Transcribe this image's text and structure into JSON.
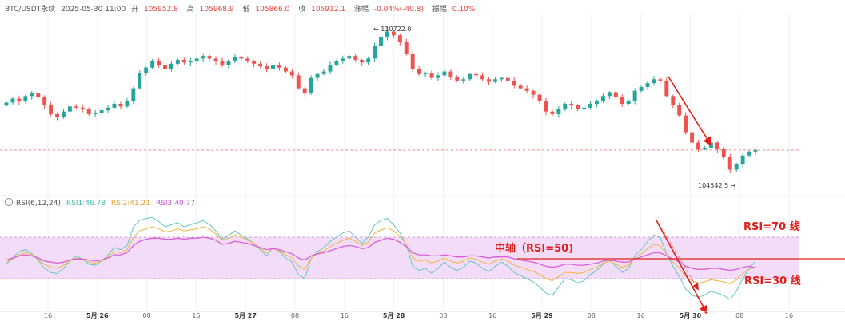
{
  "header": {
    "symbol": "BTC/USDT永续",
    "datetime": "2025-05-30 11:00",
    "open_label": "开",
    "open": "105952.8",
    "high_label": "高",
    "high": "105968.9",
    "low_label": "低",
    "low": "105866.0",
    "close_label": "收",
    "close": "105912.1",
    "change_label": "涨幅",
    "change": "-0.04%(-40.8)",
    "amp_label": "振幅",
    "amp": "0.10%"
  },
  "rsi_header": {
    "title": "RSI(6,12,24)",
    "rsi1": "RSI1:46.78",
    "rsi2": "RSI2:41.21",
    "rsi3": "RSI3:40.77"
  },
  "price_labels": {
    "high": "110722.0",
    "low": "104542.5"
  },
  "annotations": {
    "rsi70": "RSI=70 线",
    "mid": "中轴（RSI=50)",
    "rsi30": "RSI=30 线"
  },
  "colors": {
    "up": "#26a69a",
    "down": "#ef5350",
    "rsi1": "#5ec9c0",
    "rsi2": "#f5b342",
    "rsi3": "#d860d8",
    "band": "#f3dcf7",
    "anno": "#e0201a"
  },
  "chart_data": {
    "type": "candlestick",
    "interval": "1h",
    "x_ticks": [
      "16",
      "5月 26",
      "08",
      "16",
      "5月 27",
      "08",
      "16",
      "5月 28",
      "08",
      "16",
      "5月 29",
      "08",
      "16",
      "5月 30",
      "08",
      "16"
    ],
    "price_range": [
      104300,
      111100
    ],
    "last_price": 105912.1,
    "candles_close": [
      107750,
      107900,
      107800,
      108000,
      108100,
      107950,
      107650,
      107300,
      107200,
      107400,
      107600,
      107550,
      107500,
      107300,
      107350,
      107450,
      107550,
      107700,
      107600,
      107800,
      108300,
      108900,
      109100,
      109350,
      109200,
      109050,
      109250,
      109400,
      109300,
      109350,
      109450,
      109550,
      109450,
      109350,
      109200,
      109350,
      109500,
      109450,
      109350,
      109250,
      109150,
      109050,
      109200,
      109100,
      108950,
      108800,
      108300,
      108100,
      108700,
      108850,
      108950,
      109200,
      109350,
      109450,
      109550,
      109400,
      109300,
      109450,
      109950,
      110300,
      110500,
      110350,
      110100,
      109650,
      109050,
      108850,
      108900,
      108700,
      108800,
      108950,
      108750,
      108600,
      108650,
      108850,
      108800,
      108650,
      108550,
      108650,
      108700,
      108600,
      108400,
      108300,
      108200,
      108050,
      107800,
      107400,
      107300,
      107500,
      107700,
      107650,
      107500,
      107550,
      107700,
      107800,
      108000,
      108150,
      107950,
      107700,
      107800,
      108200,
      108350,
      108500,
      108650,
      108600,
      108000,
      107650,
      107250,
      106600,
      106200,
      105950,
      106000,
      106200,
      105950,
      105650,
      105150,
      105350,
      105700,
      105850,
      105912
    ],
    "rsi_ylim": [
      0,
      100
    ],
    "rsi_levels": [
      70,
      50,
      30
    ],
    "series": [
      {
        "name": "RSI1",
        "values": [
          44,
          50,
          56,
          58,
          54,
          48,
          40,
          36,
          35,
          40,
          47,
          52,
          49,
          44,
          43,
          47,
          53,
          60,
          58,
          62,
          80,
          86,
          88,
          89,
          85,
          80,
          82,
          84,
          80,
          82,
          84,
          86,
          82,
          76,
          68,
          72,
          76,
          72,
          68,
          64,
          58,
          52,
          60,
          56,
          50,
          46,
          34,
          30,
          50,
          56,
          60,
          66,
          70,
          74,
          76,
          70,
          64,
          70,
          82,
          86,
          88,
          82,
          74,
          62,
          42,
          38,
          40,
          35,
          40,
          46,
          41,
          38,
          41,
          47,
          45,
          40,
          37,
          42,
          46,
          42,
          36,
          33,
          30,
          27,
          22,
          16,
          14,
          22,
          30,
          29,
          26,
          28,
          34,
          38,
          44,
          48,
          42,
          36,
          40,
          52,
          58,
          66,
          72,
          70,
          54,
          42,
          32,
          20,
          14,
          12,
          14,
          18,
          16,
          14,
          10,
          18,
          30,
          40,
          46.78
        ]
      },
      {
        "name": "RSI2",
        "values": [
          46,
          49,
          53,
          55,
          53,
          49,
          44,
          41,
          40,
          43,
          47,
          50,
          49,
          46,
          45,
          47,
          51,
          56,
          55,
          58,
          70,
          76,
          78,
          80,
          78,
          75,
          76,
          78,
          76,
          77,
          78,
          80,
          78,
          73,
          67,
          69,
          72,
          70,
          67,
          64,
          59,
          55,
          59,
          57,
          53,
          50,
          42,
          39,
          50,
          54,
          57,
          61,
          64,
          67,
          69,
          66,
          62,
          65,
          74,
          77,
          79,
          76,
          71,
          63,
          50,
          47,
          48,
          45,
          47,
          50,
          47,
          45,
          47,
          50,
          49,
          46,
          44,
          47,
          49,
          47,
          43,
          41,
          39,
          37,
          34,
          30,
          28,
          32,
          36,
          36,
          35,
          36,
          39,
          41,
          45,
          47,
          44,
          41,
          43,
          50,
          54,
          59,
          63,
          62,
          53,
          46,
          40,
          32,
          28,
          26,
          27,
          29,
          28,
          27,
          25,
          29,
          35,
          39,
          41.21
        ]
      },
      {
        "name": "RSI3",
        "values": [
          48,
          50,
          52,
          53,
          52,
          50,
          47,
          46,
          45,
          46,
          48,
          49,
          49,
          48,
          47,
          48,
          50,
          53,
          53,
          55,
          62,
          66,
          68,
          69,
          69,
          68,
          68,
          69,
          68,
          69,
          69,
          70,
          69,
          67,
          63,
          64,
          66,
          65,
          64,
          62,
          60,
          58,
          59,
          58,
          56,
          54,
          50,
          48,
          52,
          54,
          55,
          57,
          59,
          61,
          62,
          61,
          59,
          60,
          65,
          67,
          69,
          68,
          65,
          61,
          55,
          53,
          53,
          52,
          52,
          53,
          52,
          51,
          51,
          52,
          52,
          51,
          50,
          51,
          51,
          51,
          49,
          48,
          47,
          46,
          44,
          42,
          41,
          42,
          44,
          44,
          43,
          43,
          44,
          45,
          47,
          48,
          47,
          46,
          46,
          49,
          51,
          53,
          55,
          55,
          52,
          49,
          46,
          42,
          40,
          39,
          39,
          40,
          40,
          39,
          38,
          39,
          41,
          42,
          40.77
        ]
      }
    ]
  }
}
